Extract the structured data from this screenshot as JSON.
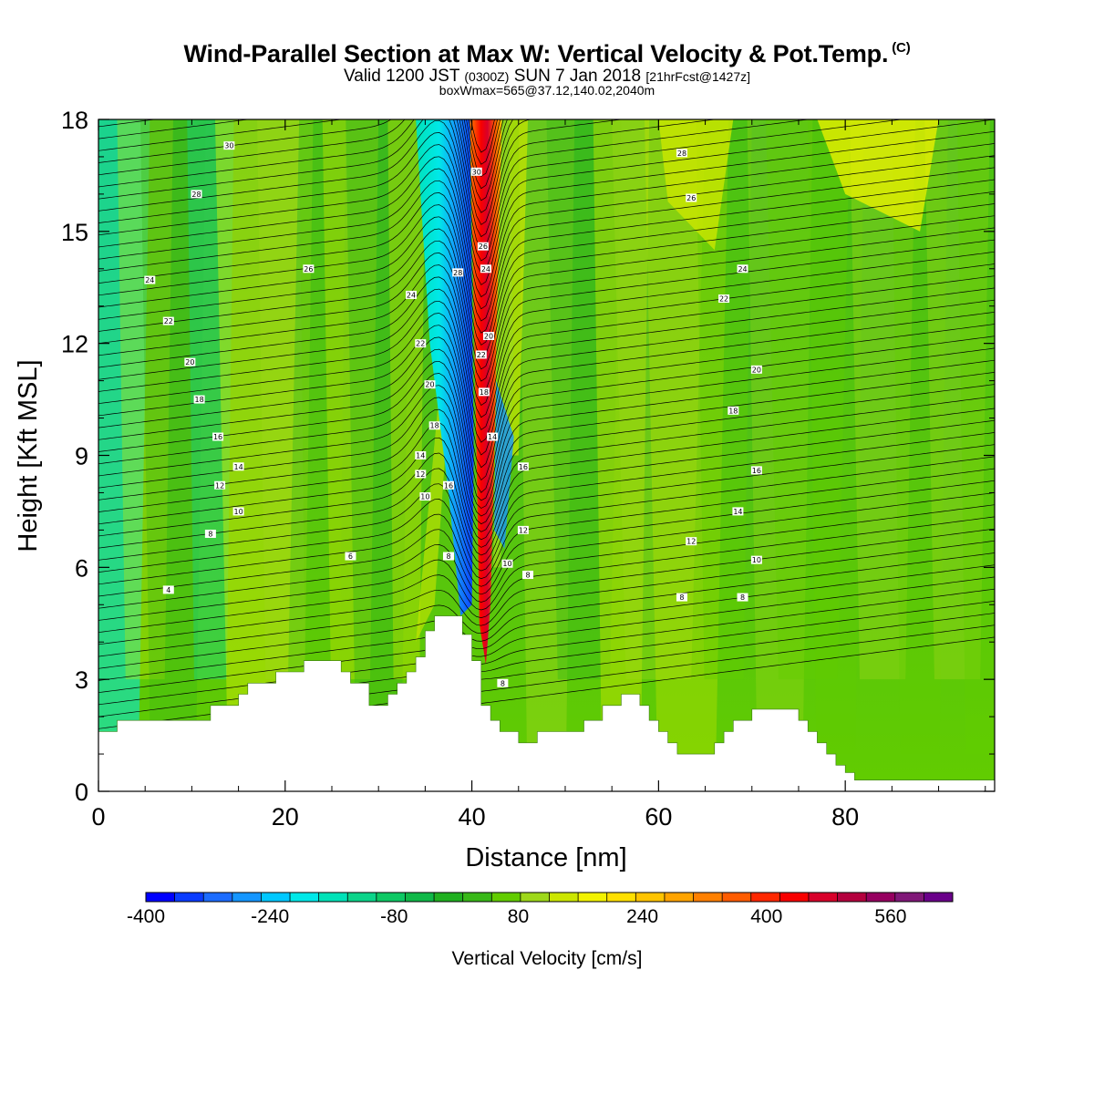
{
  "chart_data": {
    "type": "heatmap",
    "title": "Wind-Parallel Section at Max W: Vertical Velocity & Pot.Temp.",
    "title_unit": "(C)",
    "subtitle": {
      "main": "Valid 1200 JST",
      "zulu": "(0300Z)",
      "date": "SUN 7 Jan 2018",
      "forecast": "[21hrFcst@1427z]"
    },
    "subtitle2": "boxWmax=565@37.12,140.02,2040m",
    "xlabel": "Distance [nm]",
    "ylabel": "Height [Kft MSL]",
    "xlim": [
      0,
      96
    ],
    "ylim": [
      0,
      18
    ],
    "xticks": [
      0,
      20,
      40,
      60,
      80
    ],
    "yticks": [
      0,
      3,
      6,
      9,
      12,
      15,
      18
    ],
    "colorbar": {
      "label": "Vertical Velocity [cm/s]",
      "range": [
        -400,
        640
      ],
      "step": 40,
      "tick_labels": [
        -400,
        -240,
        -80,
        80,
        240,
        400,
        560
      ],
      "colors": [
        "#0000ff",
        "#0a3cff",
        "#1c6cff",
        "#1596ff",
        "#00c8ff",
        "#00e8e8",
        "#00e2b8",
        "#0cd48a",
        "#0ec864",
        "#10b848",
        "#20b020",
        "#38b818",
        "#62cc00",
        "#9ed81a",
        "#cce600",
        "#f2f200",
        "#ffe000",
        "#ffc400",
        "#ffa400",
        "#ff8000",
        "#ff5c00",
        "#ff2800",
        "#f80000",
        "#d8002a",
        "#b4003e",
        "#960060",
        "#801878",
        "#6a008a"
      ]
    },
    "terrain_kft": [
      [
        0,
        1.6
      ],
      [
        2,
        1.6
      ],
      [
        2,
        1.9
      ],
      [
        12,
        1.9
      ],
      [
        12,
        2.3
      ],
      [
        15,
        2.3
      ],
      [
        15,
        2.6
      ],
      [
        16,
        2.6
      ],
      [
        16,
        2.9
      ],
      [
        19,
        2.9
      ],
      [
        19,
        3.2
      ],
      [
        22,
        3.2
      ],
      [
        22,
        3.5
      ],
      [
        26,
        3.5
      ],
      [
        26,
        3.2
      ],
      [
        27,
        3.2
      ],
      [
        27,
        2.9
      ],
      [
        29,
        2.9
      ],
      [
        29,
        2.3
      ],
      [
        31,
        2.3
      ],
      [
        31,
        2.6
      ],
      [
        32,
        2.6
      ],
      [
        32,
        2.9
      ],
      [
        33,
        2.9
      ],
      [
        33,
        3.2
      ],
      [
        34,
        3.2
      ],
      [
        34,
        3.6
      ],
      [
        35,
        3.6
      ],
      [
        35,
        4.3
      ],
      [
        36,
        4.3
      ],
      [
        36,
        4.7
      ],
      [
        39,
        4.7
      ],
      [
        39,
        4.2
      ],
      [
        40,
        4.2
      ],
      [
        40,
        3.5
      ],
      [
        41,
        3.5
      ],
      [
        41,
        2.3
      ],
      [
        42,
        2.3
      ],
      [
        42,
        1.9
      ],
      [
        43,
        1.9
      ],
      [
        43,
        1.6
      ],
      [
        45,
        1.6
      ],
      [
        45,
        1.3
      ],
      [
        47,
        1.3
      ],
      [
        47,
        1.6
      ],
      [
        52,
        1.6
      ],
      [
        52,
        1.9
      ],
      [
        54,
        1.9
      ],
      [
        54,
        2.3
      ],
      [
        56,
        2.3
      ],
      [
        56,
        2.6
      ],
      [
        58,
        2.6
      ],
      [
        58,
        2.3
      ],
      [
        59,
        2.3
      ],
      [
        59,
        1.9
      ],
      [
        60,
        1.9
      ],
      [
        60,
        1.6
      ],
      [
        61,
        1.6
      ],
      [
        61,
        1.3
      ],
      [
        62,
        1.3
      ],
      [
        62,
        1.0
      ],
      [
        66,
        1.0
      ],
      [
        66,
        1.3
      ],
      [
        67,
        1.3
      ],
      [
        67,
        1.6
      ],
      [
        68,
        1.6
      ],
      [
        68,
        1.9
      ],
      [
        70,
        1.9
      ],
      [
        70,
        2.2
      ],
      [
        75,
        2.2
      ],
      [
        75,
        1.9
      ],
      [
        76,
        1.9
      ],
      [
        76,
        1.6
      ],
      [
        77,
        1.6
      ],
      [
        77,
        1.3
      ],
      [
        78,
        1.3
      ],
      [
        78,
        1.0
      ],
      [
        79,
        1.0
      ],
      [
        79,
        0.7
      ],
      [
        80,
        0.7
      ],
      [
        80,
        0.5
      ],
      [
        81,
        0.5
      ],
      [
        81,
        0.3
      ],
      [
        96,
        0.3
      ]
    ],
    "contour_labels": [
      {
        "text": "30",
        "x": 14.0,
        "y": 17.3
      },
      {
        "text": "28",
        "x": 10.5,
        "y": 16.0
      },
      {
        "text": "26",
        "x": 22.5,
        "y": 14.0
      },
      {
        "text": "24",
        "x": 5.5,
        "y": 13.7
      },
      {
        "text": "22",
        "x": 7.5,
        "y": 12.6
      },
      {
        "text": "20",
        "x": 9.8,
        "y": 11.5
      },
      {
        "text": "18",
        "x": 10.8,
        "y": 10.5
      },
      {
        "text": "16",
        "x": 12.8,
        "y": 9.5
      },
      {
        "text": "14",
        "x": 15.0,
        "y": 8.7
      },
      {
        "text": "12",
        "x": 13.0,
        "y": 8.2
      },
      {
        "text": "10",
        "x": 15.0,
        "y": 7.5
      },
      {
        "text": "8",
        "x": 12.0,
        "y": 6.9
      },
      {
        "text": "6",
        "x": 27.0,
        "y": 6.3
      },
      {
        "text": "4",
        "x": 7.5,
        "y": 5.4
      },
      {
        "text": "24",
        "x": 33.5,
        "y": 13.3
      },
      {
        "text": "22",
        "x": 34.5,
        "y": 12.0
      },
      {
        "text": "20",
        "x": 35.5,
        "y": 10.9
      },
      {
        "text": "18",
        "x": 36.0,
        "y": 9.8
      },
      {
        "text": "14",
        "x": 34.5,
        "y": 9.0
      },
      {
        "text": "12",
        "x": 34.5,
        "y": 8.5
      },
      {
        "text": "10",
        "x": 35.0,
        "y": 7.9
      },
      {
        "text": "16",
        "x": 37.5,
        "y": 8.2
      },
      {
        "text": "8",
        "x": 37.5,
        "y": 6.3
      },
      {
        "text": "30",
        "x": 40.5,
        "y": 16.6
      },
      {
        "text": "28",
        "x": 38.5,
        "y": 13.9
      },
      {
        "text": "26",
        "x": 41.2,
        "y": 14.6
      },
      {
        "text": "24",
        "x": 41.5,
        "y": 14.0
      },
      {
        "text": "22",
        "x": 41.0,
        "y": 11.7
      },
      {
        "text": "20",
        "x": 41.8,
        "y": 12.2
      },
      {
        "text": "18",
        "x": 41.3,
        "y": 10.7
      },
      {
        "text": "14",
        "x": 42.2,
        "y": 9.5
      },
      {
        "text": "16",
        "x": 45.5,
        "y": 8.7
      },
      {
        "text": "12",
        "x": 45.5,
        "y": 7.0
      },
      {
        "text": "10",
        "x": 43.8,
        "y": 6.1
      },
      {
        "text": "8",
        "x": 46.0,
        "y": 5.8
      },
      {
        "text": "8",
        "x": 43.3,
        "y": 2.9
      },
      {
        "text": "28",
        "x": 62.5,
        "y": 17.1
      },
      {
        "text": "26",
        "x": 63.5,
        "y": 15.9
      },
      {
        "text": "24",
        "x": 69.0,
        "y": 14.0
      },
      {
        "text": "22",
        "x": 67.0,
        "y": 13.2
      },
      {
        "text": "20",
        "x": 70.5,
        "y": 11.3
      },
      {
        "text": "18",
        "x": 68.0,
        "y": 10.2
      },
      {
        "text": "16",
        "x": 70.5,
        "y": 8.6
      },
      {
        "text": "14",
        "x": 68.5,
        "y": 7.5
      },
      {
        "text": "12",
        "x": 63.5,
        "y": 6.7
      },
      {
        "text": "10",
        "x": 70.5,
        "y": 6.2
      },
      {
        "text": "8",
        "x": 62.5,
        "y": 5.2
      },
      {
        "text": "8",
        "x": 69.0,
        "y": 5.2
      }
    ]
  }
}
